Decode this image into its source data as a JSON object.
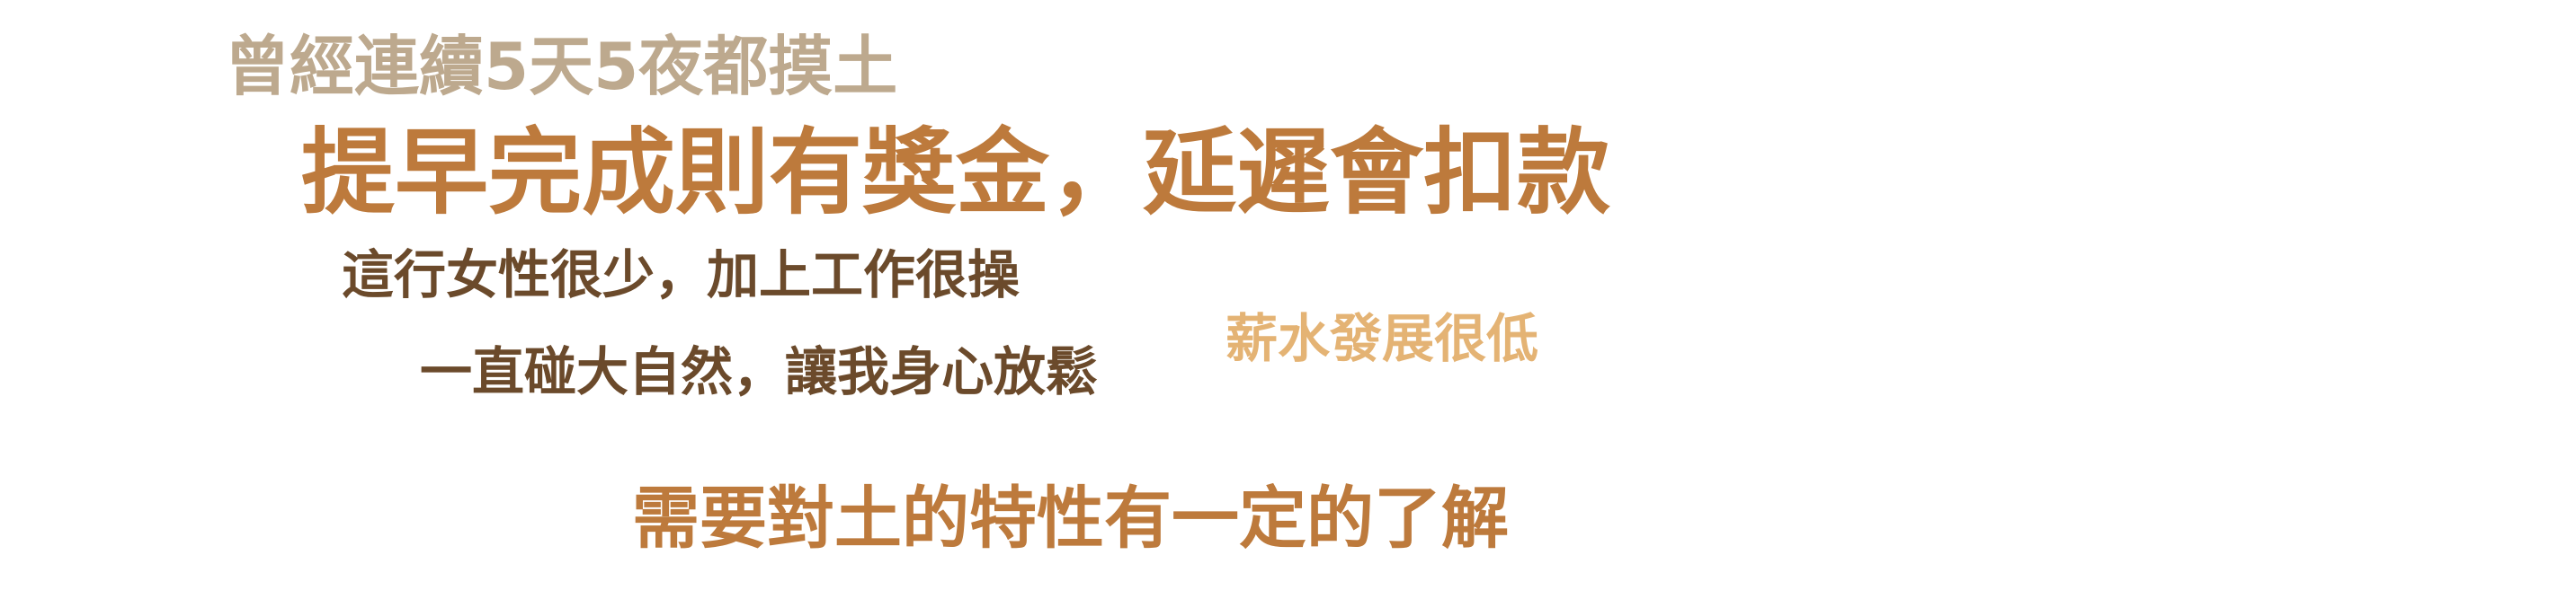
{
  "phrases": [
    {
      "id": "p1",
      "text": "曾經連續5天5夜都摸土",
      "color": "#bda98e"
    },
    {
      "id": "p2",
      "text": "提早完成則有獎金，延遲會扣款",
      "color": "#bd7a3c"
    },
    {
      "id": "p3",
      "text": "這行女性很少，加上工作很操",
      "color": "#6b4a2b"
    },
    {
      "id": "p4",
      "text": "一直碰大自然，讓我身心放鬆",
      "color": "#6b4a2b"
    },
    {
      "id": "p5",
      "text": "薪水發展很低",
      "color": "#e4b374"
    },
    {
      "id": "p6",
      "text": "需要對土的特性有一定的了解",
      "color": "#bd7a3c"
    }
  ]
}
